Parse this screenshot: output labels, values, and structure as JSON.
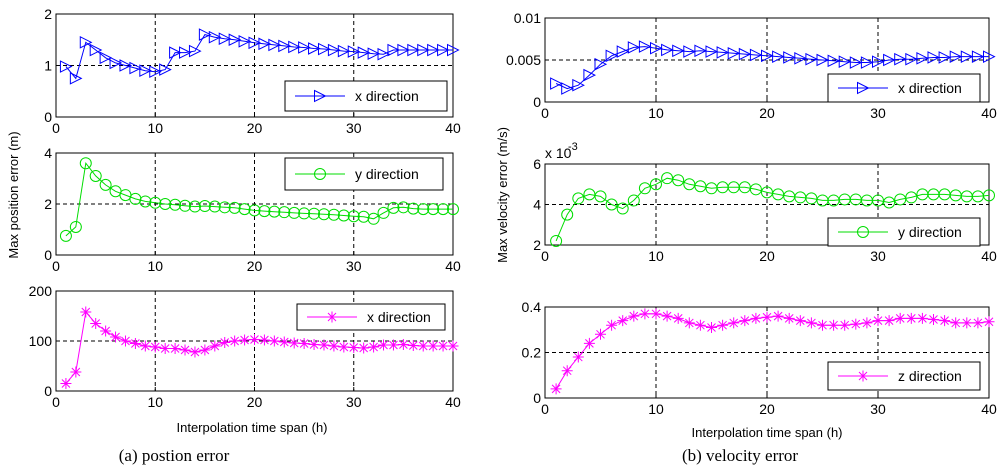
{
  "figure": {
    "left_caption": "(a) postion error",
    "right_caption": "(b) velocity error",
    "left_ylabel": "Max  position error (m)",
    "right_ylabel": "Max  velocity error (m/s)",
    "left_xlabel": "Interpolation time span (h)",
    "right_xlabel": "Interpolation time span (h)"
  },
  "chart_data": [
    {
      "type": "line",
      "panel": "a-top",
      "xlim": [
        0,
        40
      ],
      "ylim": [
        0,
        2
      ],
      "xticks": [
        "0",
        "10",
        "20",
        "30",
        "40"
      ],
      "yticks": [
        "0",
        "1",
        "2"
      ],
      "grid": "dashed at x=10,20,30 and y=1",
      "legend_position": "lower-right",
      "series": [
        {
          "name": "x direction",
          "color": "#0000ff",
          "marker": "triangle-right",
          "x": [
            1,
            2,
            3,
            4,
            5,
            6,
            7,
            8,
            9,
            10,
            11,
            12,
            13,
            14,
            15,
            16,
            17,
            18,
            19,
            20,
            21,
            22,
            23,
            24,
            25,
            26,
            27,
            28,
            29,
            30,
            31,
            32,
            33,
            34,
            35,
            36,
            37,
            38,
            39,
            40
          ],
          "y": [
            0.98,
            0.75,
            1.45,
            1.3,
            1.15,
            1.05,
            1.0,
            0.95,
            0.9,
            0.88,
            0.92,
            1.25,
            1.25,
            1.28,
            1.6,
            1.55,
            1.52,
            1.5,
            1.47,
            1.44,
            1.42,
            1.4,
            1.38,
            1.36,
            1.35,
            1.33,
            1.32,
            1.3,
            1.28,
            1.27,
            1.25,
            1.23,
            1.22,
            1.3,
            1.3,
            1.3,
            1.3,
            1.3,
            1.3,
            1.3
          ]
        }
      ]
    },
    {
      "type": "line",
      "panel": "a-middle",
      "xlim": [
        0,
        40
      ],
      "ylim": [
        0,
        4
      ],
      "xticks": [
        "0",
        "10",
        "20",
        "30",
        "40"
      ],
      "yticks": [
        "0",
        "2",
        "4"
      ],
      "grid": "dashed at x=10,20,30 and y=2",
      "legend_position": "top-right",
      "series": [
        {
          "name": "y direction",
          "color": "#00dd00",
          "marker": "circle",
          "x": [
            1,
            2,
            3,
            4,
            5,
            6,
            7,
            8,
            9,
            10,
            11,
            12,
            13,
            14,
            15,
            16,
            17,
            18,
            19,
            20,
            21,
            22,
            23,
            24,
            25,
            26,
            27,
            28,
            29,
            30,
            31,
            32,
            33,
            34,
            35,
            36,
            37,
            38,
            39,
            40
          ],
          "y": [
            0.75,
            1.1,
            3.6,
            3.1,
            2.75,
            2.5,
            2.35,
            2.2,
            2.1,
            2.05,
            2.0,
            1.97,
            1.93,
            1.9,
            1.92,
            1.9,
            1.87,
            1.85,
            1.8,
            1.75,
            1.72,
            1.7,
            1.68,
            1.65,
            1.63,
            1.62,
            1.6,
            1.58,
            1.55,
            1.52,
            1.5,
            1.42,
            1.65,
            1.85,
            1.87,
            1.82,
            1.8,
            1.8,
            1.8,
            1.8
          ]
        }
      ]
    },
    {
      "type": "line",
      "panel": "a-bottom",
      "xlim": [
        0,
        40
      ],
      "ylim": [
        0,
        200
      ],
      "xticks": [
        "0",
        "10",
        "20",
        "30",
        "40"
      ],
      "yticks": [
        "0",
        "100",
        "200"
      ],
      "grid": "dashed at x=10,20,30 and y=100",
      "legend_position": "top-right",
      "series": [
        {
          "name": "x direction",
          "color": "#ff00ff",
          "marker": "asterisk",
          "x": [
            1,
            2,
            3,
            4,
            5,
            6,
            7,
            8,
            9,
            10,
            11,
            12,
            13,
            14,
            15,
            16,
            17,
            18,
            19,
            20,
            21,
            22,
            23,
            24,
            25,
            26,
            27,
            28,
            29,
            30,
            31,
            32,
            33,
            34,
            35,
            36,
            37,
            38,
            39,
            40
          ],
          "y": [
            15,
            38,
            158,
            135,
            120,
            108,
            100,
            95,
            90,
            88,
            85,
            85,
            82,
            78,
            82,
            90,
            97,
            100,
            102,
            103,
            102,
            100,
            98,
            96,
            95,
            93,
            92,
            90,
            88,
            87,
            86,
            88,
            92,
            92,
            93,
            91,
            90,
            90,
            90,
            90
          ]
        }
      ]
    },
    {
      "type": "line",
      "panel": "b-top",
      "xlim": [
        0,
        40
      ],
      "ylim": [
        0,
        0.01
      ],
      "xticks": [
        "0",
        "10",
        "20",
        "30",
        "40"
      ],
      "yticks": [
        "0",
        "0.005",
        "0.01"
      ],
      "grid": "dashed at x=10,20,30 and y=0.005",
      "legend_position": "lower-right",
      "series": [
        {
          "name": "x direction",
          "color": "#0000ff",
          "marker": "triangle-right",
          "x": [
            1,
            2,
            3,
            4,
            5,
            6,
            7,
            8,
            9,
            10,
            11,
            12,
            13,
            14,
            15,
            16,
            17,
            18,
            19,
            20,
            21,
            22,
            23,
            24,
            25,
            26,
            27,
            28,
            29,
            30,
            31,
            32,
            33,
            34,
            35,
            36,
            37,
            38,
            39,
            40
          ],
          "y": [
            0.0022,
            0.0016,
            0.002,
            0.0032,
            0.0045,
            0.0055,
            0.006,
            0.0065,
            0.0066,
            0.0064,
            0.0062,
            0.0061,
            0.006,
            0.0061,
            0.006,
            0.0059,
            0.0058,
            0.0057,
            0.0056,
            0.0055,
            0.0054,
            0.0053,
            0.0052,
            0.0051,
            0.005,
            0.0049,
            0.0048,
            0.0047,
            0.0047,
            0.0048,
            0.005,
            0.0051,
            0.0051,
            0.0052,
            0.0053,
            0.0053,
            0.0054,
            0.0054,
            0.0054,
            0.0054
          ]
        }
      ]
    },
    {
      "type": "line",
      "panel": "b-middle",
      "xlim": [
        0,
        40
      ],
      "ylim": [
        2,
        6
      ],
      "y_multiplier": "x 10",
      "y_multiplier_exp": "-3",
      "xticks": [
        "0",
        "10",
        "20",
        "30",
        "40"
      ],
      "yticks": [
        "2",
        "4",
        "6"
      ],
      "grid": "dashed at x=10,20,30 and y=4",
      "legend_position": "lower-right",
      "series": [
        {
          "name": "y direction",
          "color": "#00dd00",
          "marker": "circle",
          "x": [
            1,
            2,
            3,
            4,
            5,
            6,
            7,
            8,
            9,
            10,
            11,
            12,
            13,
            14,
            15,
            16,
            17,
            18,
            19,
            20,
            21,
            22,
            23,
            24,
            25,
            26,
            27,
            28,
            29,
            30,
            31,
            32,
            33,
            34,
            35,
            36,
            37,
            38,
            39,
            40
          ],
          "y": [
            2.2,
            3.5,
            4.3,
            4.5,
            4.4,
            4.0,
            3.8,
            4.2,
            4.8,
            5.0,
            5.3,
            5.2,
            5.0,
            4.9,
            4.8,
            4.85,
            4.85,
            4.85,
            4.75,
            4.6,
            4.5,
            4.4,
            4.35,
            4.3,
            4.2,
            4.2,
            4.25,
            4.25,
            4.2,
            4.2,
            4.1,
            4.25,
            4.35,
            4.5,
            4.5,
            4.5,
            4.45,
            4.4,
            4.4,
            4.45
          ]
        }
      ]
    },
    {
      "type": "line",
      "panel": "b-bottom",
      "xlim": [
        0,
        40
      ],
      "ylim": [
        0,
        0.4
      ],
      "xticks": [
        "0",
        "10",
        "20",
        "30",
        "40"
      ],
      "yticks": [
        "0",
        "0.2",
        "0.4"
      ],
      "grid": "dashed at x=10,20,30 and y=0.2",
      "legend_position": "lower-right",
      "series": [
        {
          "name": "z direction",
          "color": "#ff00ff",
          "marker": "asterisk",
          "x": [
            1,
            2,
            3,
            4,
            5,
            6,
            7,
            8,
            9,
            10,
            11,
            12,
            13,
            14,
            15,
            16,
            17,
            18,
            19,
            20,
            21,
            22,
            23,
            24,
            25,
            26,
            27,
            28,
            29,
            30,
            31,
            32,
            33,
            34,
            35,
            36,
            37,
            38,
            39,
            40
          ],
          "y": [
            0.04,
            0.12,
            0.18,
            0.24,
            0.28,
            0.32,
            0.34,
            0.36,
            0.37,
            0.37,
            0.36,
            0.35,
            0.33,
            0.32,
            0.31,
            0.32,
            0.33,
            0.34,
            0.35,
            0.355,
            0.36,
            0.35,
            0.34,
            0.33,
            0.32,
            0.32,
            0.32,
            0.325,
            0.33,
            0.34,
            0.34,
            0.35,
            0.35,
            0.35,
            0.345,
            0.34,
            0.33,
            0.33,
            0.33,
            0.335
          ]
        }
      ]
    }
  ]
}
